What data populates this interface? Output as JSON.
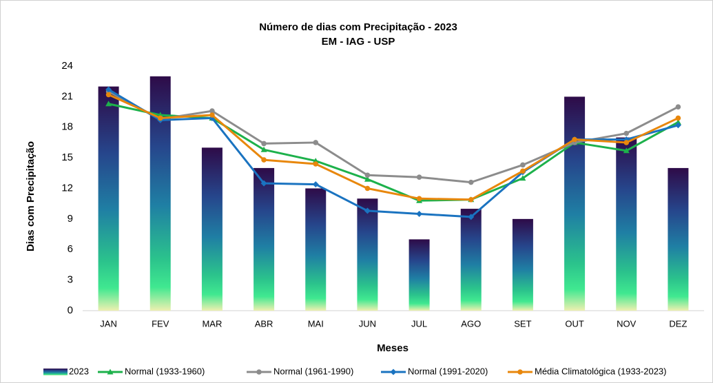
{
  "chart_data": {
    "type": "bar",
    "title": "Número de dias com Precipitação - 2023",
    "subtitle": "EM - IAG - USP",
    "x_label": "Meses",
    "y_label": "Dias com Precipitação",
    "categories": [
      "JAN",
      "FEV",
      "MAR",
      "ABR",
      "MAI",
      "JUN",
      "JUL",
      "AGO",
      "SET",
      "OUT",
      "NOV",
      "DEZ"
    ],
    "ylim": [
      0,
      24
    ],
    "yticks": [
      0,
      3,
      6,
      9,
      12,
      15,
      18,
      21,
      24
    ],
    "grid": false,
    "legend": "bottom",
    "series": [
      {
        "name": "2023",
        "type": "bar",
        "values": [
          22,
          23,
          16,
          14,
          12,
          11,
          7,
          10,
          9,
          21,
          17,
          14
        ]
      },
      {
        "name": "Normal (1933-1960)",
        "type": "line",
        "color": "#1db14b",
        "marker": "triangle",
        "values": [
          20.3,
          19.2,
          18.9,
          15.8,
          14.7,
          12.9,
          10.8,
          10.9,
          13.0,
          16.5,
          15.7,
          18.5
        ]
      },
      {
        "name": "Normal (1961-1990)",
        "type": "line",
        "color": "#8c8c8c",
        "marker": "circle",
        "values": [
          21.5,
          18.8,
          19.6,
          16.4,
          16.5,
          13.3,
          13.1,
          12.6,
          14.3,
          16.5,
          17.4,
          20.0
        ]
      },
      {
        "name": "Normal (1991-2020)",
        "type": "line",
        "color": "#1a73c0",
        "marker": "diamond",
        "values": [
          21.7,
          18.7,
          18.9,
          12.5,
          12.4,
          9.8,
          9.5,
          9.2,
          13.6,
          16.8,
          16.8,
          18.2
        ]
      },
      {
        "name": "Média Climatológica (1933-2023)",
        "type": "line",
        "color": "#e8870c",
        "marker": "circle",
        "values": [
          21.2,
          18.9,
          19.2,
          14.8,
          14.4,
          12.0,
          11.0,
          10.9,
          13.7,
          16.8,
          16.5,
          18.9
        ]
      }
    ]
  }
}
